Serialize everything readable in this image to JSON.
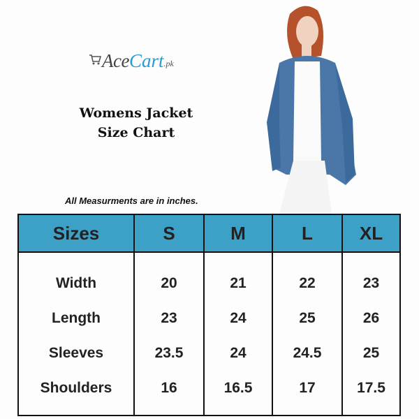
{
  "brand": {
    "name_part1": "Ace",
    "name_part2": "Cart",
    "suffix": ".pk",
    "accent": "#2a9ad0"
  },
  "title": {
    "line1": "Womens Jacket",
    "line2": "Size Chart"
  },
  "note": "All Measurments are in inches.",
  "table": {
    "header_color": "#3da0c6",
    "headers": [
      "Sizes",
      "S",
      "M",
      "L",
      "XL"
    ],
    "rows": [
      {
        "label": "Width",
        "values": [
          "20",
          "21",
          "22",
          "23"
        ]
      },
      {
        "label": "Length",
        "values": [
          "23",
          "24",
          "25",
          "26"
        ]
      },
      {
        "label": "Sleeves",
        "values": [
          "23.5",
          "24",
          "24.5",
          "25"
        ]
      },
      {
        "label": "Shoulders",
        "values": [
          "16",
          "16.5",
          "17",
          "17.5"
        ]
      }
    ]
  }
}
